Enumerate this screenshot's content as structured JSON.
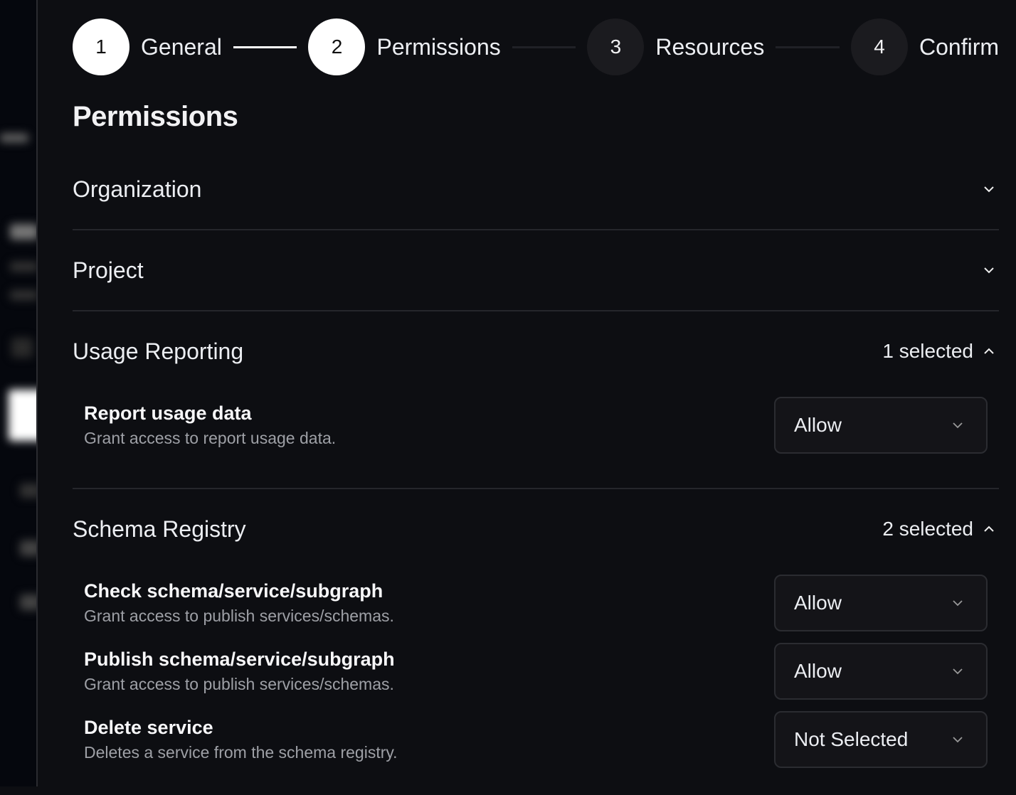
{
  "stepper": {
    "steps": [
      {
        "number": "1",
        "label": "General",
        "state": "complete"
      },
      {
        "number": "2",
        "label": "Permissions",
        "state": "active"
      },
      {
        "number": "3",
        "label": "Resources",
        "state": "upcoming"
      },
      {
        "number": "4",
        "label": "Confirm",
        "state": "upcoming"
      }
    ]
  },
  "page_title": "Permissions",
  "sections": [
    {
      "title": "Organization",
      "expanded": false
    },
    {
      "title": "Project",
      "expanded": false
    },
    {
      "title": "Usage Reporting",
      "expanded": true,
      "count": "1 selected",
      "permissions": [
        {
          "title": "Report usage data",
          "description": "Grant access to report usage data.",
          "value": "Allow"
        }
      ]
    },
    {
      "title": "Schema Registry",
      "expanded": true,
      "count": "2 selected",
      "permissions": [
        {
          "title": "Check schema/service/subgraph",
          "description": "Grant access to publish services/schemas.",
          "value": "Allow"
        },
        {
          "title": "Publish schema/service/subgraph",
          "description": "Grant access to publish services/schemas.",
          "value": "Allow"
        },
        {
          "title": "Delete service",
          "description": "Deletes a service from the schema registry.",
          "value": "Not Selected"
        }
      ]
    }
  ]
}
